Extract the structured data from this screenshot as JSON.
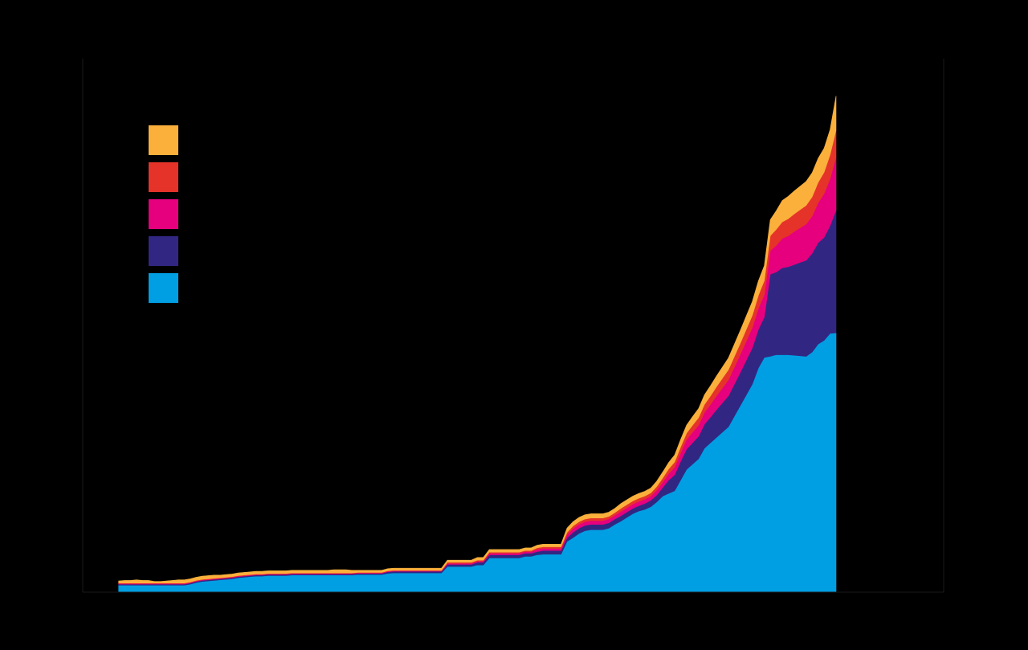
{
  "colors": {
    "background": "#000000",
    "axis": "#1a1a1a"
  },
  "chart_data": {
    "type": "area",
    "stacked": true,
    "grid": false,
    "legend_placement": "top-left",
    "x": [
      0,
      1,
      2,
      3,
      4,
      5,
      6,
      7,
      8,
      9,
      10,
      11,
      12,
      13,
      14,
      15,
      16,
      17,
      18,
      19,
      20,
      21,
      22,
      23,
      24,
      25,
      26,
      27,
      28,
      29,
      30,
      31,
      32,
      33,
      34,
      35,
      36,
      37,
      38,
      39,
      40,
      41,
      42,
      43,
      44,
      45,
      46,
      47,
      48,
      49,
      50,
      51,
      52,
      53,
      54,
      55,
      56,
      57,
      58,
      59,
      60,
      61,
      62,
      63,
      64,
      65,
      66,
      67,
      68,
      69,
      70,
      71,
      72,
      73,
      74,
      75,
      76,
      77,
      78,
      79,
      80,
      81,
      82,
      83,
      84,
      85,
      86,
      87,
      88,
      89,
      90,
      91,
      92,
      93,
      94,
      95,
      96,
      97,
      98,
      99,
      100,
      101,
      102,
      103,
      104,
      105,
      106,
      107,
      108,
      109,
      110,
      111,
      112,
      113,
      114,
      115,
      116,
      117,
      118,
      119,
      120
    ],
    "xlim": [
      -6,
      138
    ],
    "ylim": [
      0,
      100
    ],
    "series": [
      {
        "color": "#009FE3",
        "values": [
          1.3,
          1.3,
          1.3,
          1.3,
          1.3,
          1.3,
          1.3,
          1.3,
          1.3,
          1.3,
          1.3,
          1.3,
          1.5,
          1.8,
          2.0,
          2.1,
          2.2,
          2.3,
          2.4,
          2.5,
          2.7,
          2.8,
          2.9,
          3.0,
          3.0,
          3.1,
          3.1,
          3.1,
          3.1,
          3.2,
          3.2,
          3.2,
          3.2,
          3.2,
          3.2,
          3.2,
          3.2,
          3.2,
          3.2,
          3.2,
          3.3,
          3.3,
          3.3,
          3.3,
          3.3,
          3.5,
          3.6,
          3.6,
          3.6,
          3.6,
          3.6,
          3.6,
          3.6,
          3.6,
          3.6,
          4.8,
          4.8,
          4.8,
          4.8,
          4.8,
          5.1,
          5.1,
          6.4,
          6.4,
          6.4,
          6.4,
          6.4,
          6.4,
          6.7,
          6.7,
          7.0,
          7.1,
          7.1,
          7.1,
          7.1,
          9.5,
          10.2,
          11.0,
          11.5,
          11.7,
          11.7,
          11.7,
          12.0,
          12.7,
          13.3,
          14.0,
          14.7,
          15.2,
          15.5,
          16.0,
          16.9,
          18.0,
          18.5,
          19.0,
          21.0,
          23.0,
          24.0,
          25.0,
          27.0,
          28.0,
          29.0,
          30.0,
          31.0,
          33.0,
          35.0,
          37.0,
          39.0,
          42.0,
          44.0,
          44.2,
          44.5,
          44.5,
          44.5,
          44.4,
          44.3,
          44.2,
          45.0,
          46.5,
          47.2,
          48.5,
          48.6
        ]
      },
      {
        "color": "#312783",
        "values": [
          0.2,
          0.2,
          0.2,
          0.2,
          0.2,
          0.2,
          0.2,
          0.2,
          0.2,
          0.2,
          0.2,
          0.2,
          0.2,
          0.2,
          0.2,
          0.2,
          0.2,
          0.2,
          0.2,
          0.2,
          0.2,
          0.2,
          0.2,
          0.2,
          0.2,
          0.2,
          0.2,
          0.2,
          0.2,
          0.2,
          0.2,
          0.2,
          0.2,
          0.2,
          0.2,
          0.2,
          0.2,
          0.2,
          0.2,
          0.2,
          0.2,
          0.2,
          0.2,
          0.2,
          0.2,
          0.3,
          0.3,
          0.3,
          0.3,
          0.3,
          0.3,
          0.3,
          0.3,
          0.3,
          0.3,
          0.4,
          0.4,
          0.4,
          0.4,
          0.4,
          0.5,
          0.5,
          0.6,
          0.6,
          0.6,
          0.6,
          0.6,
          0.6,
          0.6,
          0.6,
          0.6,
          0.7,
          0.7,
          0.7,
          0.7,
          0.7,
          1.0,
          1.0,
          1.0,
          1.0,
          1.0,
          1.0,
          1.0,
          1.0,
          1.0,
          1.0,
          1.0,
          1.0,
          1.1,
          1.2,
          1.3,
          1.6,
          2.5,
          3.0,
          3.5,
          3.8,
          4.0,
          4.2,
          4.5,
          4.8,
          5.2,
          5.5,
          5.8,
          6.0,
          6.2,
          6.5,
          6.8,
          7.2,
          7.6,
          15.4,
          15.5,
          16.3,
          16.5,
          17.0,
          17.5,
          18.0,
          18.5,
          19.0,
          19.3,
          20.2,
          23.0
        ]
      },
      {
        "color": "#E6007E",
        "values": [
          0.1,
          0.1,
          0.1,
          0.1,
          0.1,
          0.1,
          0.1,
          0.1,
          0.1,
          0.1,
          0.1,
          0.1,
          0.1,
          0.1,
          0.1,
          0.1,
          0.1,
          0.1,
          0.1,
          0.1,
          0.1,
          0.1,
          0.1,
          0.1,
          0.1,
          0.1,
          0.1,
          0.1,
          0.1,
          0.1,
          0.1,
          0.1,
          0.1,
          0.1,
          0.1,
          0.1,
          0.1,
          0.1,
          0.1,
          0.1,
          0.1,
          0.1,
          0.1,
          0.1,
          0.1,
          0.1,
          0.1,
          0.1,
          0.1,
          0.1,
          0.1,
          0.1,
          0.1,
          0.1,
          0.1,
          0.2,
          0.2,
          0.2,
          0.2,
          0.2,
          0.2,
          0.2,
          0.3,
          0.3,
          0.3,
          0.3,
          0.3,
          0.3,
          0.3,
          0.3,
          0.4,
          0.4,
          0.4,
          0.4,
          0.4,
          0.6,
          0.7,
          0.7,
          0.7,
          0.7,
          0.7,
          0.7,
          0.7,
          0.7,
          0.8,
          0.8,
          0.8,
          0.8,
          0.8,
          0.8,
          0.9,
          1.0,
          1.2,
          1.4,
          1.6,
          1.8,
          2.0,
          2.1,
          2.2,
          2.4,
          2.6,
          2.8,
          3.0,
          3.2,
          3.4,
          3.6,
          3.8,
          4.0,
          4.2,
          4.4,
          5.0,
          5.5,
          5.8,
          6.2,
          6.5,
          6.8,
          7.0,
          7.5,
          8.2,
          8.8,
          10.0
        ]
      },
      {
        "color": "#E6332A",
        "values": [
          0.1,
          0.1,
          0.1,
          0.1,
          0.1,
          0.1,
          0.1,
          0.1,
          0.1,
          0.1,
          0.1,
          0.1,
          0.1,
          0.1,
          0.1,
          0.1,
          0.1,
          0.1,
          0.1,
          0.1,
          0.1,
          0.1,
          0.1,
          0.1,
          0.1,
          0.1,
          0.1,
          0.1,
          0.1,
          0.1,
          0.1,
          0.1,
          0.1,
          0.1,
          0.1,
          0.1,
          0.1,
          0.1,
          0.1,
          0.1,
          0.1,
          0.1,
          0.1,
          0.1,
          0.1,
          0.1,
          0.1,
          0.1,
          0.1,
          0.1,
          0.1,
          0.1,
          0.1,
          0.1,
          0.1,
          0.2,
          0.2,
          0.2,
          0.2,
          0.2,
          0.2,
          0.2,
          0.2,
          0.2,
          0.2,
          0.2,
          0.2,
          0.2,
          0.2,
          0.2,
          0.3,
          0.3,
          0.3,
          0.3,
          0.3,
          0.4,
          0.5,
          0.5,
          0.5,
          0.5,
          0.5,
          0.5,
          0.5,
          0.5,
          0.6,
          0.6,
          0.6,
          0.6,
          0.6,
          0.6,
          0.7,
          0.8,
          0.9,
          1.0,
          1.1,
          1.2,
          1.3,
          1.4,
          1.5,
          1.6,
          1.7,
          1.8,
          1.9,
          2.0,
          2.1,
          2.2,
          2.3,
          2.4,
          2.6,
          2.8,
          3.0,
          3.1,
          3.2,
          3.3,
          3.4,
          3.5,
          3.6,
          3.8,
          4.0,
          4.5,
          5.0
        ]
      },
      {
        "color": "#FBB03B",
        "values": [
          0.4,
          0.5,
          0.5,
          0.6,
          0.5,
          0.5,
          0.3,
          0.3,
          0.4,
          0.5,
          0.6,
          0.6,
          0.6,
          0.6,
          0.6,
          0.6,
          0.6,
          0.5,
          0.5,
          0.5,
          0.5,
          0.5,
          0.5,
          0.5,
          0.5,
          0.5,
          0.5,
          0.5,
          0.5,
          0.5,
          0.5,
          0.5,
          0.5,
          0.5,
          0.5,
          0.5,
          0.6,
          0.6,
          0.6,
          0.5,
          0.4,
          0.4,
          0.4,
          0.4,
          0.4,
          0.4,
          0.4,
          0.4,
          0.4,
          0.4,
          0.4,
          0.4,
          0.4,
          0.4,
          0.4,
          0.4,
          0.4,
          0.4,
          0.4,
          0.4,
          0.5,
          0.5,
          0.5,
          0.5,
          0.5,
          0.5,
          0.5,
          0.5,
          0.5,
          0.5,
          0.5,
          0.5,
          0.5,
          0.5,
          0.5,
          0.8,
          0.8,
          0.8,
          0.8,
          0.8,
          0.8,
          0.8,
          0.8,
          0.8,
          0.9,
          0.9,
          0.9,
          0.9,
          0.9,
          0.9,
          1.0,
          1.1,
          1.2,
          1.3,
          1.4,
          1.5,
          1.6,
          1.7,
          1.8,
          1.9,
          2.0,
          2.1,
          2.2,
          2.3,
          2.4,
          2.5,
          2.6,
          2.7,
          2.8,
          3.0,
          3.5,
          4.0,
          4.2,
          4.3,
          4.4,
          4.5,
          4.5,
          4.5,
          4.5,
          4.7,
          6.4
        ]
      }
    ],
    "legend_order": [
      4,
      3,
      2,
      1,
      0
    ]
  }
}
